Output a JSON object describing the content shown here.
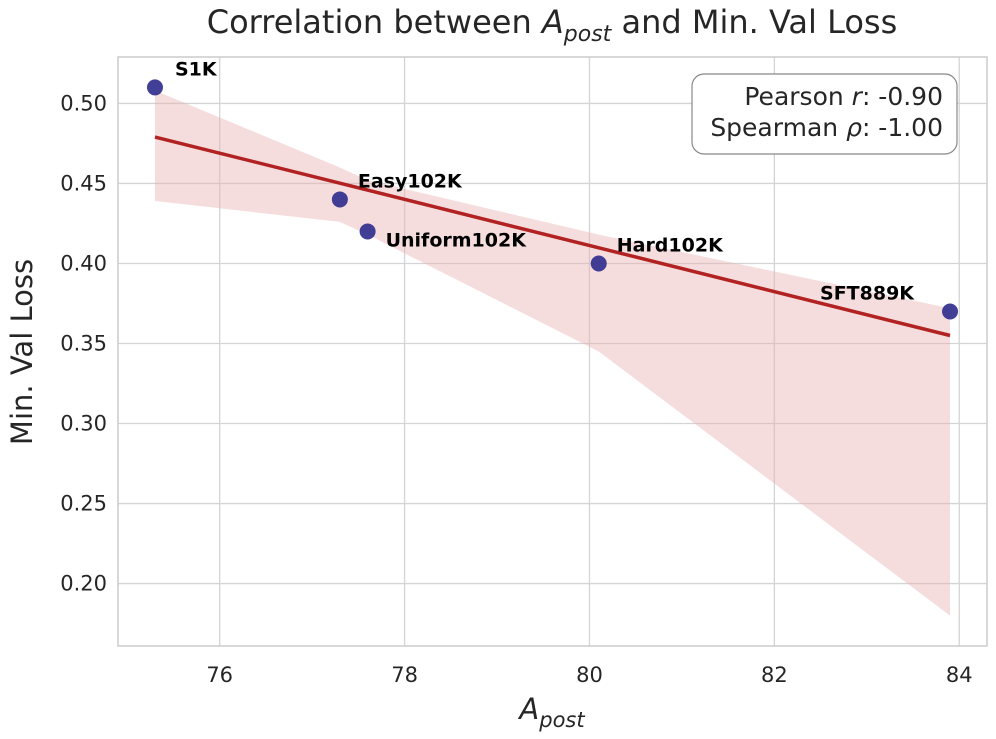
{
  "chart_data": {
    "type": "scatter",
    "title_prefix": "Correlation between ",
    "title_var": "A",
    "title_var_sub": "post",
    "title_suffix": " and Min. Val Loss",
    "xlabel_var": "A",
    "xlabel_sub": "post",
    "ylabel": "Min. Val Loss",
    "xlim": [
      74.9,
      84.3
    ],
    "ylim": [
      0.161,
      0.529
    ],
    "xticks": [
      76,
      78,
      80,
      82,
      84
    ],
    "yticks": [
      0.2,
      0.25,
      0.3,
      0.35,
      0.4,
      0.45,
      0.5
    ],
    "xtick_labels": [
      "76",
      "78",
      "80",
      "82",
      "84"
    ],
    "ytick_labels": [
      "0.20",
      "0.25",
      "0.30",
      "0.35",
      "0.40",
      "0.45",
      "0.50"
    ],
    "grid": true,
    "points": [
      {
        "label": "S1K",
        "x": 75.3,
        "y": 0.51
      },
      {
        "label": "Easy102K",
        "x": 77.3,
        "y": 0.44
      },
      {
        "label": "Uniform102K",
        "x": 77.6,
        "y": 0.42
      },
      {
        "label": "Hard102K",
        "x": 80.1,
        "y": 0.4
      },
      {
        "label": "SFT889K",
        "x": 83.9,
        "y": 0.37
      }
    ],
    "regression_line": {
      "x": [
        75.3,
        83.9
      ],
      "y": [
        0.479,
        0.355
      ]
    },
    "confidence_band": {
      "x": [
        75.3,
        77.3,
        77.6,
        80.1,
        83.9
      ],
      "upper": [
        0.508,
        0.46,
        0.452,
        0.418,
        0.372
      ],
      "lower": [
        0.439,
        0.426,
        0.418,
        0.345,
        0.18
      ]
    },
    "annotation": {
      "pearson_prefix": "Pearson ",
      "pearson_symbol": "r",
      "pearson_value": ": -0.90",
      "spearman_prefix": "Spearman ",
      "spearman_symbol": "ρ",
      "spearman_value": ": -1.00",
      "placement": "top-right"
    },
    "colors": {
      "points": "#2e2a8c",
      "line": "#b22222",
      "band": "#e8b4b6",
      "grid": "#d4d4d4",
      "frame": "#cccccc"
    }
  }
}
